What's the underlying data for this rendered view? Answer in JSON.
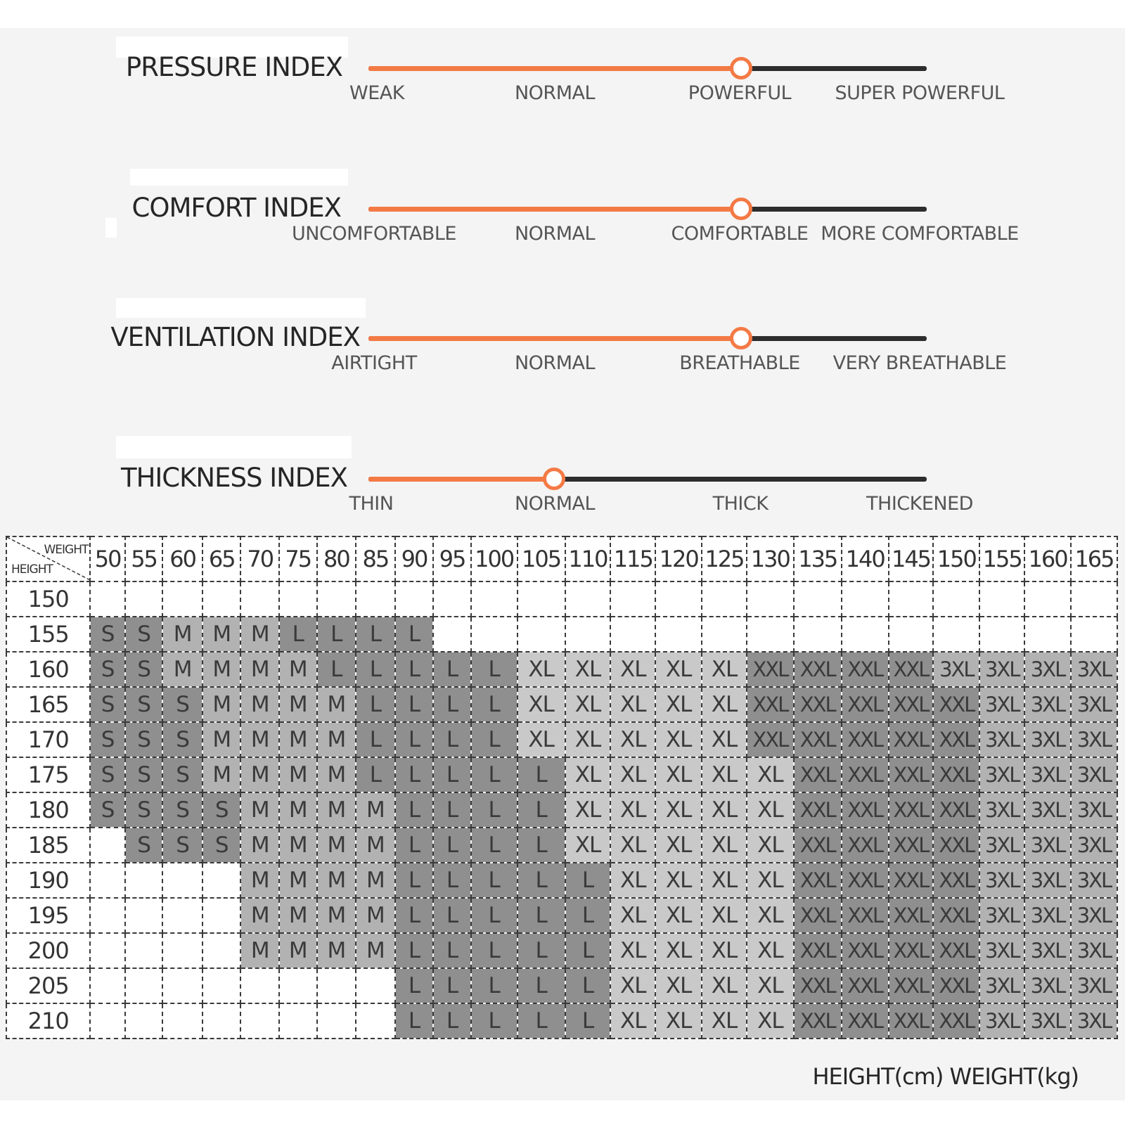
{
  "accent_color": "#f47a45",
  "track_color": "#2d2d2d",
  "indices": [
    {
      "title": "PRESSURE INDEX",
      "scale": [
        "WEAK",
        "NORMAL",
        "POWERFUL",
        "SUPER POWERFUL"
      ],
      "level_percent": 66.7
    },
    {
      "title": "COMFORT INDEX",
      "scale": [
        "UNCOMFORTABLE",
        "NORMAL",
        "COMFORTABLE",
        "MORE COMFORTABLE"
      ],
      "level_percent": 66.7
    },
    {
      "title": "VENTILATION INDEX",
      "scale": [
        "AIRTIGHT",
        "NORMAL",
        "BREATHABLE",
        "VERY BREATHABLE"
      ],
      "level_percent": 66.7
    },
    {
      "title": "THICKNESS INDEX",
      "scale": [
        "THIN",
        "NORMAL",
        "THICK",
        "THICKENED"
      ],
      "level_percent": 33.3
    }
  ],
  "size_table": {
    "corner_weight_label": "WEIGHT",
    "corner_height_label": "HEIGHT",
    "weights": [
      "50",
      "55",
      "60",
      "65",
      "70",
      "75",
      "80",
      "85",
      "90",
      "95",
      "100",
      "105",
      "110",
      "115",
      "120",
      "125",
      "130",
      "135",
      "140",
      "145",
      "150",
      "155",
      "160",
      "165"
    ],
    "rows": [
      {
        "height": "150",
        "sizes": [
          "",
          "",
          "",
          "",
          "",
          "",
          "",
          "",
          "",
          "",
          "",
          "",
          "",
          "",
          "",
          "",
          "",
          "",
          "",
          "",
          "",
          "",
          "",
          ""
        ]
      },
      {
        "height": "155",
        "sizes": [
          "S",
          "S",
          "M",
          "M",
          "M",
          "L",
          "L",
          "L",
          "L",
          "",
          "",
          "",
          "",
          "",
          "",
          "",
          "",
          "",
          "",
          "",
          "",
          "",
          "",
          ""
        ]
      },
      {
        "height": "160",
        "sizes": [
          "S",
          "S",
          "M",
          "M",
          "M",
          "M",
          "L",
          "L",
          "L",
          "L",
          "L",
          "XL",
          "XL",
          "XL",
          "XL",
          "XL",
          "XXL",
          "XXL",
          "XXL",
          "XXL",
          "3XL",
          "3XL",
          "3XL",
          "3XL"
        ]
      },
      {
        "height": "165",
        "sizes": [
          "S",
          "S",
          "S",
          "M",
          "M",
          "M",
          "M",
          "L",
          "L",
          "L",
          "L",
          "XL",
          "XL",
          "XL",
          "XL",
          "XL",
          "XXL",
          "XXL",
          "XXL",
          "XXL",
          "XXL",
          "3XL",
          "3XL",
          "3XL"
        ]
      },
      {
        "height": "170",
        "sizes": [
          "S",
          "S",
          "S",
          "M",
          "M",
          "M",
          "M",
          "L",
          "L",
          "L",
          "L",
          "XL",
          "XL",
          "XL",
          "XL",
          "XL",
          "XXL",
          "XXL",
          "XXL",
          "XXL",
          "XXL",
          "3XL",
          "3XL",
          "3XL"
        ]
      },
      {
        "height": "175",
        "sizes": [
          "S",
          "S",
          "S",
          "M",
          "M",
          "M",
          "M",
          "L",
          "L",
          "L",
          "L",
          "L",
          "XL",
          "XL",
          "XL",
          "XL",
          "XL",
          "XXL",
          "XXL",
          "XXL",
          "XXL",
          "3XL",
          "3XL",
          "3XL"
        ]
      },
      {
        "height": "180",
        "sizes": [
          "S",
          "S",
          "S",
          "S",
          "M",
          "M",
          "M",
          "M",
          "L",
          "L",
          "L",
          "L",
          "XL",
          "XL",
          "XL",
          "XL",
          "XL",
          "XXL",
          "XXL",
          "XXL",
          "XXL",
          "3XL",
          "3XL",
          "3XL"
        ]
      },
      {
        "height": "185",
        "sizes": [
          "",
          "S",
          "S",
          "S",
          "M",
          "M",
          "M",
          "M",
          "L",
          "L",
          "L",
          "L",
          "XL",
          "XL",
          "XL",
          "XL",
          "XL",
          "XXL",
          "XXL",
          "XXL",
          "XXL",
          "3XL",
          "3XL",
          "3XL"
        ]
      },
      {
        "height": "190",
        "sizes": [
          "",
          "",
          "",
          "",
          "M",
          "M",
          "M",
          "M",
          "L",
          "L",
          "L",
          "L",
          "L",
          "XL",
          "XL",
          "XL",
          "XL",
          "XXL",
          "XXL",
          "XXL",
          "XXL",
          "3XL",
          "3XL",
          "3XL"
        ]
      },
      {
        "height": "195",
        "sizes": [
          "",
          "",
          "",
          "",
          "M",
          "M",
          "M",
          "M",
          "L",
          "L",
          "L",
          "L",
          "L",
          "XL",
          "XL",
          "XL",
          "XL",
          "XXL",
          "XXL",
          "XXL",
          "XXL",
          "3XL",
          "3XL",
          "3XL"
        ]
      },
      {
        "height": "200",
        "sizes": [
          "",
          "",
          "",
          "",
          "M",
          "M",
          "M",
          "M",
          "L",
          "L",
          "L",
          "L",
          "L",
          "XL",
          "XL",
          "XL",
          "XL",
          "XXL",
          "XXL",
          "XXL",
          "XXL",
          "3XL",
          "3XL",
          "3XL"
        ]
      },
      {
        "height": "205",
        "sizes": [
          "",
          "",
          "",
          "",
          "",
          "",
          "",
          "",
          "L",
          "L",
          "L",
          "L",
          "L",
          "XL",
          "XL",
          "XL",
          "XL",
          "XXL",
          "XXL",
          "XXL",
          "XXL",
          "3XL",
          "3XL",
          "3XL"
        ]
      },
      {
        "height": "210",
        "sizes": [
          "",
          "",
          "",
          "",
          "",
          "",
          "",
          "",
          "L",
          "L",
          "L",
          "L",
          "L",
          "XL",
          "XL",
          "XL",
          "XL",
          "XXL",
          "XXL",
          "XXL",
          "XXL",
          "3XL",
          "3XL",
          "3XL"
        ]
      }
    ]
  },
  "footer_note": "HEIGHT(cm) WEIGHT(kg)"
}
